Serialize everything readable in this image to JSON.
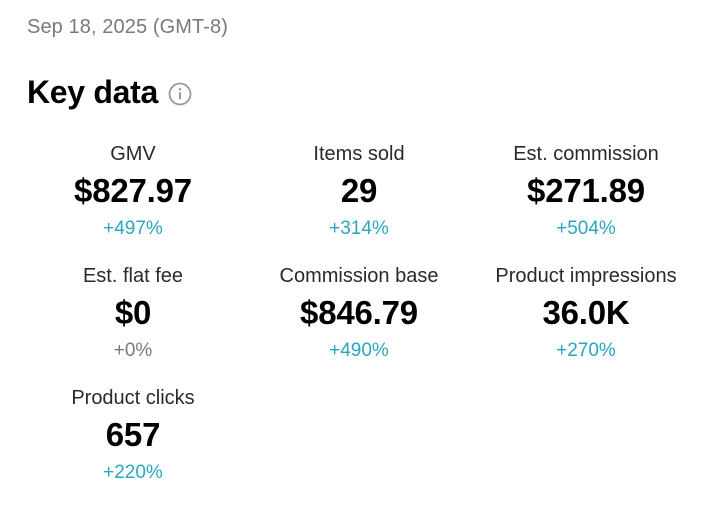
{
  "header": {
    "date": "Sep 18, 2025 (GMT-8)"
  },
  "key_data": {
    "title": "Key data",
    "info_icon": "info-icon",
    "metrics": [
      {
        "label": "GMV",
        "value": "$827.97",
        "change": "+497%",
        "trend": "up"
      },
      {
        "label": "Items sold",
        "value": "29",
        "change": "+314%",
        "trend": "up"
      },
      {
        "label": "Est. commission",
        "value": "$271.89",
        "change": "+504%",
        "trend": "up"
      },
      {
        "label": "Est. flat fee",
        "value": "$0",
        "change": "+0%",
        "trend": "flat"
      },
      {
        "label": "Commission base",
        "value": "$846.79",
        "change": "+490%",
        "trend": "up"
      },
      {
        "label": "Product impressions",
        "value": "36.0K",
        "change": "+270%",
        "trend": "up"
      },
      {
        "label": "Product clicks",
        "value": "657",
        "change": "+220%",
        "trend": "up"
      }
    ]
  },
  "colors": {
    "positive_change": "#2aa6bf",
    "neutral_change": "#7a7a7a",
    "date_text": "#7a7a7a"
  }
}
